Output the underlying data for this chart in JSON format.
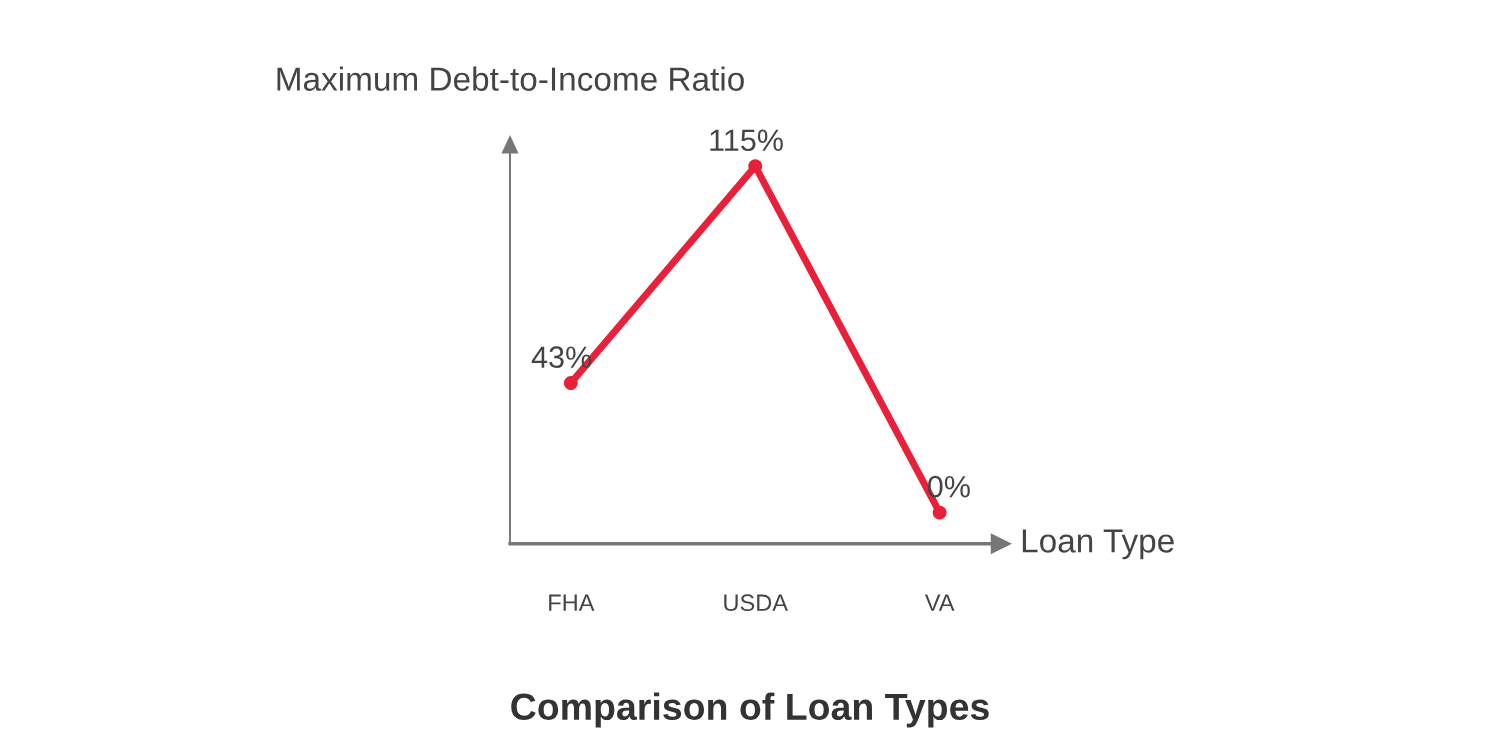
{
  "chart_data": {
    "type": "line",
    "title": "Comparison of Loan Types",
    "xlabel": "Loan Type",
    "ylabel": "Maximum Debt-to-Income Ratio",
    "categories": [
      "FHA",
      "USDA",
      "VA"
    ],
    "series": [
      {
        "color": "#e8203a",
        "values": [
          43,
          115,
          0
        ],
        "value_labels": [
          "43%",
          "115%",
          "0%"
        ]
      }
    ],
    "tick_labels": "x",
    "marker": "circle",
    "line_style": "solid",
    "grid": false,
    "legend": false
  }
}
